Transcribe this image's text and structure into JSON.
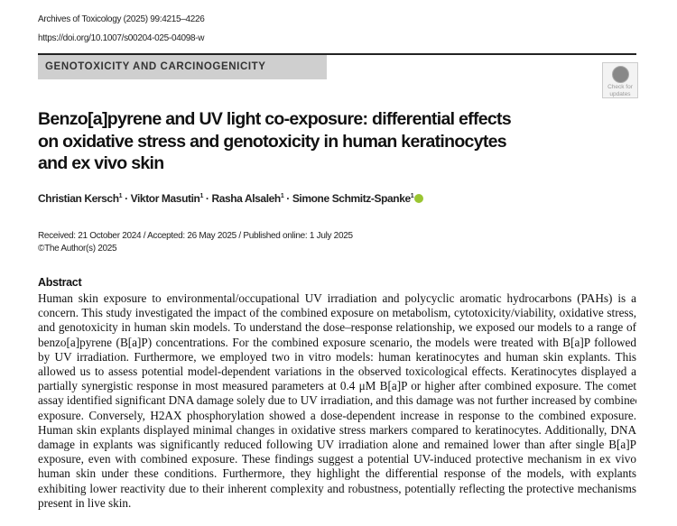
{
  "header": {
    "journal_citation": "Archives of Toxicology (2025) 99:4215–4226",
    "doi": "https://doi.org/10.1007/s00204-025-04098-w",
    "section": "GENOTOXICITY AND CARCINOGENICITY",
    "badge_text": [
      "Check for",
      "updates"
    ]
  },
  "title_lines": [
    "Benzo[a]pyrene and UV light co-exposure: differential effects",
    "on oxidative stress and genotoxicity in human keratinocytes",
    "and ex vivo skin"
  ],
  "authors": [
    "Christian Kersch",
    "Viktor Masutin",
    "Rasha Alsaleh",
    "Simone Schmitz-Spanke"
  ],
  "affiliation_mark": "1",
  "dates": "Received: 21 October 2024 / Accepted: 26 May 2025 / Published online: 1 July 2025",
  "copyright": "©The Author(s) 2025",
  "abstract": {
    "heading": "Abstract",
    "lines": [
      "Human skin exposure to environmental/occupational UV irradiation and polycyclic aromatic hydrocarbons (PAHs) is a",
      "concern. This study investigated the impact of the combined exposure on metabolism, cytotoxicity/viability, oxidative stress,",
      "and genotoxicity in human skin models. To understand the dose–response relationship, we exposed our models to a range of",
      "benzo[a]pyrene (B[a]P) concentrations. For the combined exposure scenario, the models were treated with B[a]P followed",
      "by UV irradiation. Furthermore, we employed two in vitro models: human keratinocytes and human skin explants. This",
      "allowed us to assess potential model-dependent variations in the observed toxicological effects. Keratinocytes displayed a",
      "partially synergistic response in most measured parameters at 0.4 μM B[a]P or higher after combined exposure. The comet",
      "assay identified significant DNA damage solely due to UV irradiation, and this damage was not further increased by combined",
      "exposure. Conversely, H2AX phosphorylation showed a dose-dependent increase in response to the combined exposure.",
      "Human skin explants displayed minimal changes in oxidative stress markers compared to keratinocytes. Additionally, DNA",
      "damage in explants was significantly reduced following UV irradiation alone and remained lower than after single B[a]P",
      "exposure, even with combined exposure. These findings suggest a potential UV-induced protective mechanism in ex vivo",
      "human skin under these conditions. Furthermore, they highlight the differential response of the models, with explants",
      "exhibiting lower reactivity due to their inherent complexity and robustness, potentially reflecting the protective mechanisms",
      "present in live skin."
    ]
  },
  "colors": {
    "section_band": "#cfcfcf",
    "orcid": "#9ac532"
  },
  "icons": {
    "badge": "check-for-updates-icon",
    "orcid": "orcid-icon"
  }
}
